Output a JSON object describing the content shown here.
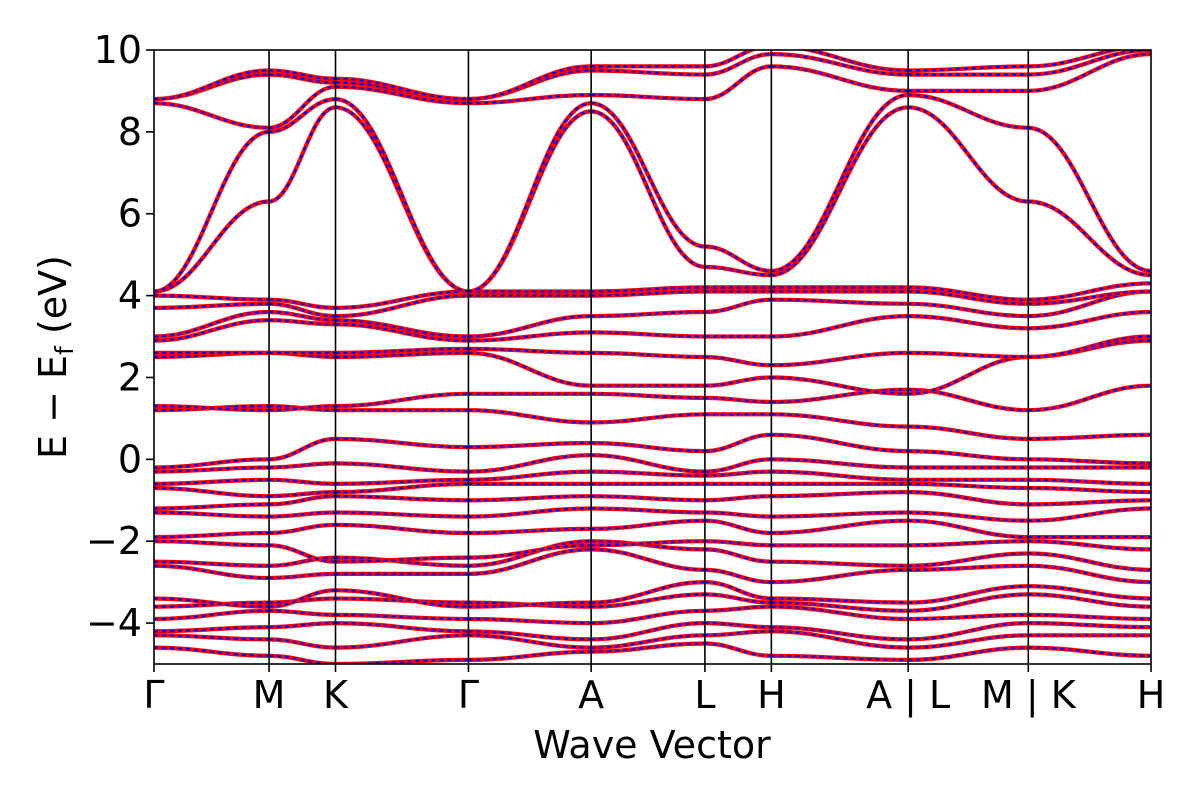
{
  "chart_data": {
    "type": "line",
    "title": "",
    "xlabel": "Wave Vector",
    "ylabel_main": "E − E",
    "ylabel_sub": "f",
    "ylabel_unit": " (eV)",
    "ylim": [
      -5,
      10
    ],
    "yticks": [
      {
        "value": -4,
        "label": "−4"
      },
      {
        "value": -2,
        "label": "−2"
      },
      {
        "value": 0,
        "label": "0"
      },
      {
        "value": 2,
        "label": "2"
      },
      {
        "value": 4,
        "label": "4"
      },
      {
        "value": 6,
        "label": "6"
      },
      {
        "value": 8,
        "label": "8"
      },
      {
        "value": 10,
        "label": "10"
      }
    ],
    "xlim": [
      0,
      7.8
    ],
    "kpoints": [
      {
        "x": 0.0,
        "label": "Γ"
      },
      {
        "x": 0.9,
        "label": "M"
      },
      {
        "x": 1.42,
        "label": "K"
      },
      {
        "x": 2.46,
        "label": "Γ"
      },
      {
        "x": 3.42,
        "label": "A"
      },
      {
        "x": 4.31,
        "label": "L"
      },
      {
        "x": 4.83,
        "label": "H"
      },
      {
        "x": 5.9,
        "label": "A | L"
      },
      {
        "x": 6.84,
        "label": "M | K"
      },
      {
        "x": 7.8,
        "label": "H"
      }
    ],
    "segments": [
      {
        "from": 0.0,
        "to": 0.9
      },
      {
        "from": 0.9,
        "to": 1.42
      },
      {
        "from": 1.42,
        "to": 2.46
      },
      {
        "from": 2.46,
        "to": 3.42
      },
      {
        "from": 3.42,
        "to": 4.31
      },
      {
        "from": 4.31,
        "to": 4.83
      },
      {
        "from": 4.83,
        "to": 5.9
      },
      {
        "from": 5.9,
        "to": 6.84
      },
      {
        "from": 6.84,
        "to": 7.8
      }
    ],
    "grid": false,
    "legend": "none",
    "series": [
      {
        "color": "#ff0000",
        "style": "solid"
      },
      {
        "color": "#0000ff",
        "style": "dashed"
      }
    ],
    "bands": [
      {
        "v": [
          -4.6,
          -4.8,
          -5.0,
          -4.9,
          -4.7,
          -4.5,
          -4.8,
          -4.9,
          -4.6,
          -4.8
        ]
      },
      {
        "v": [
          -4.3,
          -4.4,
          -4.6,
          -4.3,
          -4.6,
          -4.3,
          -4.2,
          -4.6,
          -4.3,
          -4.3
        ]
      },
      {
        "v": [
          -4.2,
          -4.1,
          -4.0,
          -4.2,
          -4.4,
          -4.0,
          -4.1,
          -4.4,
          -4.0,
          -4.1
        ]
      },
      {
        "v": [
          -3.9,
          -3.7,
          -3.8,
          -3.9,
          -4.0,
          -3.7,
          -3.6,
          -3.9,
          -3.8,
          -3.9
        ]
      },
      {
        "v": [
          -3.6,
          -3.5,
          -3.4,
          -3.5,
          -3.6,
          -3.3,
          -3.5,
          -3.7,
          -3.3,
          -3.6
        ]
      },
      {
        "v": [
          -3.4,
          -3.6,
          -3.2,
          -3.6,
          -3.5,
          -3.0,
          -3.4,
          -3.5,
          -3.1,
          -3.4
        ]
      },
      {
        "v": [
          -2.6,
          -2.9,
          -2.8,
          -2.8,
          -2.2,
          -2.7,
          -3.0,
          -2.7,
          -2.6,
          -3.0
        ]
      },
      {
        "v": [
          -2.5,
          -2.6,
          -2.4,
          -2.6,
          -2.0,
          -2.2,
          -2.5,
          -2.6,
          -2.3,
          -2.7
        ]
      },
      {
        "v": [
          -2.0,
          -2.1,
          -2.5,
          -2.4,
          -2.1,
          -2.0,
          -2.1,
          -2.1,
          -2.0,
          -2.2
        ]
      },
      {
        "v": [
          -1.9,
          -1.8,
          -1.6,
          -1.8,
          -1.7,
          -1.5,
          -1.8,
          -1.5,
          -1.9,
          -1.9
        ]
      },
      {
        "v": [
          -1.3,
          -1.4,
          -1.3,
          -1.4,
          -1.2,
          -1.3,
          -1.4,
          -1.3,
          -1.5,
          -1.2
        ]
      },
      {
        "v": [
          -1.2,
          -1.1,
          -0.9,
          -1.0,
          -0.9,
          -1.0,
          -0.9,
          -0.8,
          -1.1,
          -1.0
        ]
      },
      {
        "v": [
          -0.7,
          -0.9,
          -0.8,
          -0.6,
          -0.6,
          -0.6,
          -0.6,
          -0.6,
          -0.7,
          -0.8
        ]
      },
      {
        "v": [
          -0.6,
          -0.5,
          -0.6,
          -0.5,
          -0.3,
          -0.4,
          -0.3,
          -0.5,
          -0.5,
          -0.6
        ]
      },
      {
        "v": [
          -0.3,
          -0.2,
          -0.1,
          -0.3,
          0.1,
          -0.3,
          0.0,
          -0.2,
          -0.2,
          -0.2
        ]
      },
      {
        "v": [
          -0.2,
          0.0,
          0.5,
          0.3,
          0.4,
          0.2,
          0.6,
          0.2,
          0.0,
          -0.1
        ]
      },
      {
        "v": [
          1.2,
          1.3,
          1.2,
          1.2,
          0.9,
          1.1,
          1.1,
          0.8,
          0.5,
          0.6
        ]
      },
      {
        "v": [
          1.3,
          1.2,
          1.3,
          1.6,
          1.6,
          1.5,
          1.4,
          1.7,
          1.2,
          1.8
        ]
      },
      {
        "v": [
          2.5,
          2.6,
          2.5,
          2.6,
          1.8,
          1.8,
          2.0,
          1.6,
          2.5,
          2.9
        ]
      },
      {
        "v": [
          2.6,
          2.6,
          2.6,
          2.7,
          2.6,
          2.5,
          2.3,
          2.6,
          2.5,
          3.0
        ]
      },
      {
        "v": [
          2.9,
          3.4,
          3.3,
          2.9,
          3.1,
          3.0,
          3.0,
          3.5,
          3.2,
          3.6
        ]
      },
      {
        "v": [
          3.0,
          3.6,
          3.4,
          3.0,
          3.5,
          3.6,
          3.9,
          3.8,
          3.5,
          4.1
        ]
      },
      {
        "v": [
          3.7,
          3.8,
          3.5,
          4.0,
          4.0,
          4.1,
          4.1,
          4.1,
          3.8,
          4.1
        ]
      },
      {
        "v": [
          4.0,
          3.9,
          3.7,
          4.1,
          4.1,
          4.2,
          4.2,
          4.2,
          3.9,
          4.3
        ]
      },
      {
        "v": [
          4.1,
          6.3,
          8.6,
          4.1,
          8.5,
          4.7,
          4.5,
          8.6,
          6.3,
          4.5
        ]
      },
      {
        "v": [
          4.1,
          8.0,
          8.8,
          4.1,
          8.7,
          5.2,
          4.6,
          8.9,
          8.1,
          4.6
        ]
      },
      {
        "v": [
          8.7,
          8.1,
          9.1,
          8.7,
          8.9,
          8.8,
          9.6,
          9.0,
          9.0,
          9.9
        ]
      },
      {
        "v": [
          8.8,
          9.4,
          9.2,
          8.8,
          9.5,
          9.4,
          9.9,
          9.4,
          9.4,
          10.0
        ]
      },
      {
        "v": [
          8.8,
          9.5,
          9.3,
          8.8,
          9.6,
          9.6,
          10.1,
          9.5,
          9.6,
          10.1
        ]
      }
    ]
  }
}
